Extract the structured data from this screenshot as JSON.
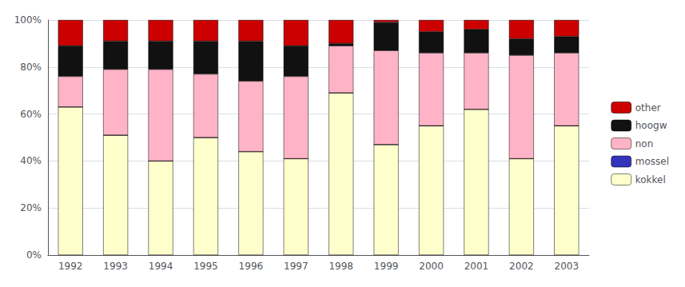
{
  "chart_data": {
    "type": "bar",
    "stacked": true,
    "grid": true,
    "legend": "right",
    "categories": [
      "1992",
      "1993",
      "1994",
      "1995",
      "1996",
      "1997",
      "1998",
      "1999",
      "2000",
      "2001",
      "2002",
      "2003"
    ],
    "series": [
      {
        "name": "kokkel",
        "color": "#FFFFCC",
        "values": [
          63,
          51,
          40,
          50,
          44,
          41,
          69,
          47,
          55,
          62,
          41,
          55
        ]
      },
      {
        "name": "mossel",
        "color": "#3333BB",
        "values": [
          0,
          0,
          0,
          0,
          0,
          0,
          0,
          0,
          0,
          0,
          0,
          0
        ]
      },
      {
        "name": "non",
        "color": "#FFB3C6",
        "values": [
          13,
          28,
          39,
          27,
          30,
          35,
          20,
          40,
          31,
          24,
          44,
          31
        ]
      },
      {
        "name": "hoogw",
        "color": "#111111",
        "values": [
          13,
          12,
          12,
          14,
          17,
          13,
          1,
          12,
          9,
          10,
          7,
          7
        ]
      },
      {
        "name": "other",
        "color": "#CC0000",
        "values": [
          11,
          9,
          9,
          9,
          9,
          11,
          10,
          1,
          5,
          4,
          8,
          7
        ]
      }
    ],
    "ylim": [
      0,
      100
    ],
    "yticks": [
      {
        "value": 0,
        "label": "0%"
      },
      {
        "value": 20,
        "label": "20%"
      },
      {
        "value": 40,
        "label": "40%"
      },
      {
        "value": 60,
        "label": "60%"
      },
      {
        "value": 80,
        "label": "80%"
      },
      {
        "value": 100,
        "label": "100%"
      }
    ]
  }
}
